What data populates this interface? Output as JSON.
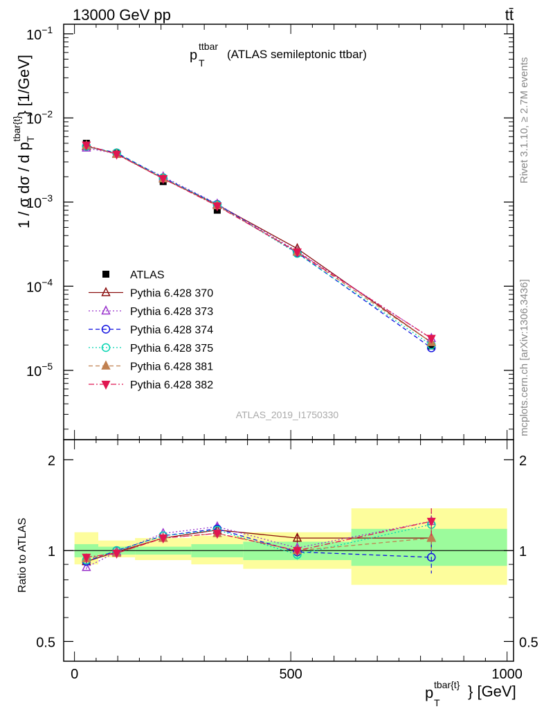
{
  "header": {
    "left": "13000 GeV pp",
    "right": "tt̄"
  },
  "plot_title": {
    "main": "p",
    "sub": "T",
    "sup": "ttbar",
    "rest": "(ATLAS semileptonic ttbar)"
  },
  "analysis_id": "ATLAS_2019_I1750330",
  "side_right_top": "Rivet 3.1.10, ≥ 2.7M events",
  "side_right_bottom": "mcplots.cern.ch [arXiv:1306.3436]",
  "ratio_ylabel": "Ratio to ATLAS",
  "colors": {
    "data": "#000000",
    "band_inner": "#9cfb9c",
    "band_outer": "#fdfd9c"
  },
  "chart_data": [
    {
      "type": "scatter",
      "panel": "main",
      "title": "p_T^{ttbar} (ATLAS semileptonic ttbar)",
      "ylabel": "1 / σ dσ / d p_T^{tbar{t}} [1/GeV]",
      "ylog": true,
      "ylim": [
        1.5e-06,
        0.13
      ],
      "xlim": [
        -25,
        1015
      ],
      "y_ticks": [
        {
          "value": 0.1,
          "base": "10",
          "exp": "−1"
        },
        {
          "value": 0.01,
          "base": "10",
          "exp": "−2"
        },
        {
          "value": 0.001,
          "base": "10",
          "exp": "−3"
        },
        {
          "value": 0.0001,
          "base": "10",
          "exp": "−4"
        },
        {
          "value": 1e-05,
          "base": "10",
          "exp": "−5"
        }
      ],
      "x": [
        27.5,
        97.5,
        205,
        330,
        515,
        825
      ],
      "bin_edges": [
        0,
        55,
        140,
        270,
        390,
        640,
        1000
      ],
      "legend_location": "middle-left",
      "series": [
        {
          "name": "ATLAS",
          "label": "ATLAS",
          "color": "#000000",
          "marker": "square",
          "line": "none",
          "values": [
            0.005,
            0.0038,
            0.00175,
            0.0008,
            0.000255,
            1.95e-05
          ]
        },
        {
          "name": "Pythia 6.428 370",
          "label": "Pythia 6.428 370",
          "color": "#8b0f0f",
          "marker": "triangle-open",
          "line": "solid",
          "values": [
            0.0046,
            0.00375,
            0.0019,
            0.00093,
            0.00028,
            2.15e-05
          ]
        },
        {
          "name": "Pythia 6.428 373",
          "label": "Pythia 6.428 373",
          "color": "#9932cc",
          "marker": "triangle-open",
          "line": "dotted",
          "values": [
            0.0044,
            0.00375,
            0.002,
            0.00095,
            0.00026,
            2.4e-05
          ]
        },
        {
          "name": "Pythia 6.428 374",
          "label": "Pythia 6.428 374",
          "color": "#1010e0",
          "marker": "circle-open",
          "line": "dashed",
          "values": [
            0.0046,
            0.00385,
            0.00195,
            0.00094,
            0.00025,
            1.85e-05
          ]
        },
        {
          "name": "Pythia 6.428 375",
          "label": "Pythia 6.428 375",
          "color": "#00d4b0",
          "marker": "circle-open",
          "line": "dotted",
          "values": [
            0.0046,
            0.00385,
            0.00195,
            0.00093,
            0.000245,
            2e-05
          ]
        },
        {
          "name": "Pythia 6.428 381",
          "label": "Pythia 6.428 381",
          "color": "#c08050",
          "marker": "triangle-filled",
          "line": "dashed",
          "values": [
            0.0047,
            0.0037,
            0.0019,
            0.00091,
            0.000255,
            2.15e-05
          ]
        },
        {
          "name": "Pythia 6.428 382",
          "label": "Pythia 6.428 382",
          "color": "#e01650",
          "marker": "triangle-down-filled",
          "line": "dashdot",
          "values": [
            0.00475,
            0.0037,
            0.0019,
            0.0009,
            0.000255,
            2.4e-05
          ]
        }
      ]
    },
    {
      "type": "scatter",
      "panel": "ratio",
      "ylabel": "Ratio to ATLAS",
      "xlabel": "p_T^{tbar{t}} [GeV]",
      "xlabel_main": "p",
      "xlabel_sub": "T",
      "xlabel_sup": "tbar{t}",
      "xlabel_unit": "} [GeV]",
      "ylog": true,
      "ylim": [
        0.43,
        2.33
      ],
      "xlim": [
        -25,
        1015
      ],
      "y_ticks": [
        {
          "value": 0.5,
          "label": "0.5"
        },
        {
          "value": 1,
          "label": "1"
        },
        {
          "value": 2,
          "label": "2"
        }
      ],
      "x_ticks": [
        {
          "value": 0,
          "label": "0"
        },
        {
          "value": 500,
          "label": "500"
        },
        {
          "value": 1000,
          "label": "1000"
        }
      ],
      "x": [
        27.5,
        97.5,
        205,
        330,
        515,
        825
      ],
      "bands": [
        {
          "x0": 0,
          "x1": 55,
          "inner": [
            0.95,
            1.05
          ],
          "outer": [
            0.9,
            1.15
          ]
        },
        {
          "x0": 55,
          "x1": 140,
          "inner": [
            0.97,
            1.03
          ],
          "outer": [
            0.95,
            1.08
          ]
        },
        {
          "x0": 140,
          "x1": 270,
          "inner": [
            0.97,
            1.03
          ],
          "outer": [
            0.93,
            1.1
          ]
        },
        {
          "x0": 270,
          "x1": 390,
          "inner": [
            0.95,
            1.05
          ],
          "outer": [
            0.9,
            1.12
          ]
        },
        {
          "x0": 390,
          "x1": 640,
          "inner": [
            0.93,
            1.07
          ],
          "outer": [
            0.87,
            1.15
          ]
        },
        {
          "x0": 640,
          "x1": 1000,
          "inner": [
            0.89,
            1.18
          ],
          "outer": [
            0.77,
            1.38
          ]
        }
      ],
      "series": [
        {
          "name": "Pythia 6.428 370",
          "color": "#8b0f0f",
          "marker": "triangle-open",
          "line": "solid",
          "values": [
            0.92,
            0.99,
            1.1,
            1.17,
            1.1,
            1.1
          ],
          "errors": [
            0.02,
            0.01,
            0.01,
            0.03,
            0.04,
            0.1
          ]
        },
        {
          "name": "Pythia 6.428 373",
          "color": "#9932cc",
          "marker": "triangle-open",
          "line": "dotted",
          "values": [
            0.88,
            0.99,
            1.14,
            1.2,
            1.02,
            1.25
          ],
          "errors": [
            0.02,
            0.01,
            0.01,
            0.03,
            0.04,
            0.13
          ]
        },
        {
          "name": "Pythia 6.428 374",
          "color": "#1010e0",
          "marker": "circle-open",
          "line": "dashed",
          "values": [
            0.92,
            1.0,
            1.12,
            1.18,
            0.99,
            0.95
          ],
          "errors": [
            0.02,
            0.01,
            0.01,
            0.03,
            0.04,
            0.11
          ]
        },
        {
          "name": "Pythia 6.428 375",
          "color": "#00d4b0",
          "marker": "circle-open",
          "line": "dotted",
          "values": [
            0.93,
            1.0,
            1.12,
            1.17,
            0.97,
            1.22
          ],
          "errors": [
            0.02,
            0.01,
            0.01,
            0.03,
            0.04,
            0.12
          ]
        },
        {
          "name": "Pythia 6.428 381",
          "color": "#c08050",
          "marker": "triangle-filled",
          "line": "dashed",
          "values": [
            0.94,
            0.98,
            1.1,
            1.14,
            1.0,
            1.1
          ],
          "errors": [
            0.02,
            0.01,
            0.01,
            0.03,
            0.04,
            0.1
          ]
        },
        {
          "name": "Pythia 6.428 382",
          "color": "#e01650",
          "marker": "triangle-down-filled",
          "line": "dashdot",
          "values": [
            0.95,
            0.98,
            1.1,
            1.14,
            1.0,
            1.25
          ],
          "errors": [
            0.02,
            0.01,
            0.01,
            0.03,
            0.04,
            0.13
          ]
        }
      ]
    }
  ]
}
